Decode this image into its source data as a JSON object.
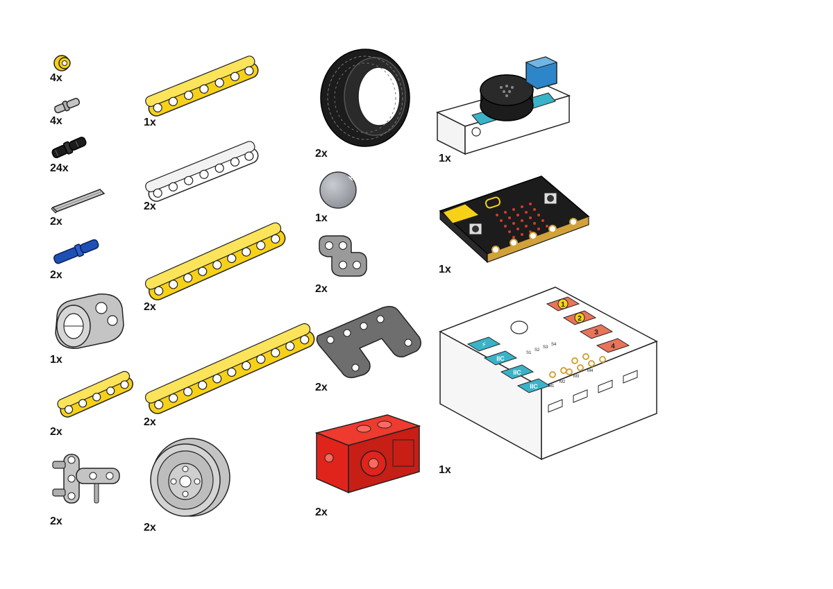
{
  "parts": {
    "bush_yellow": {
      "qty": "4x"
    },
    "pin_grey": {
      "qty": "4x"
    },
    "pin_black": {
      "qty": "24x"
    },
    "axle_grey": {
      "qty": "2x"
    },
    "pin_blue": {
      "qty": "2x"
    },
    "connector_grey": {
      "qty": "1x"
    },
    "beam5_yellow": {
      "qty": "2x"
    },
    "cross_block_grey": {
      "qty": "2x"
    },
    "beam7_yellow": {
      "qty": "1x"
    },
    "beam7_white": {
      "qty": "2x"
    },
    "beam9_yellow": {
      "qty": "2x"
    },
    "beam11_yellow": {
      "qty": "2x"
    },
    "wheel_hub": {
      "qty": "2x"
    },
    "tire_black": {
      "qty": "2x"
    },
    "ball_grey": {
      "qty": "1x"
    },
    "l_beam_grey": {
      "qty": "2x"
    },
    "frame_dark_grey": {
      "qty": "2x"
    },
    "motor_red": {
      "qty": "2x"
    },
    "speaker_module": {
      "qty": "1x"
    },
    "microbit_board": {
      "qty": "1x"
    },
    "expansion_board": {
      "qty": "1x",
      "ports": [
        "1",
        "2",
        "3",
        "4"
      ],
      "iic_label": "IIC",
      "pin_labels": [
        "S1",
        "S2",
        "S3",
        "S4"
      ],
      "analog_labels": [
        "M1",
        "M2",
        "M3",
        "M4"
      ]
    }
  },
  "colors": {
    "yellow": "#f7d117",
    "white_part": "#ffffff",
    "light_grey": "#c4c4c4",
    "dark_grey": "#6e6e6e",
    "black": "#1c1c1c",
    "blue": "#1e4fb5",
    "red": "#e0241b",
    "teal": "#3ab3c8",
    "orange": "#e8745a",
    "gold": "#d2a23a"
  }
}
